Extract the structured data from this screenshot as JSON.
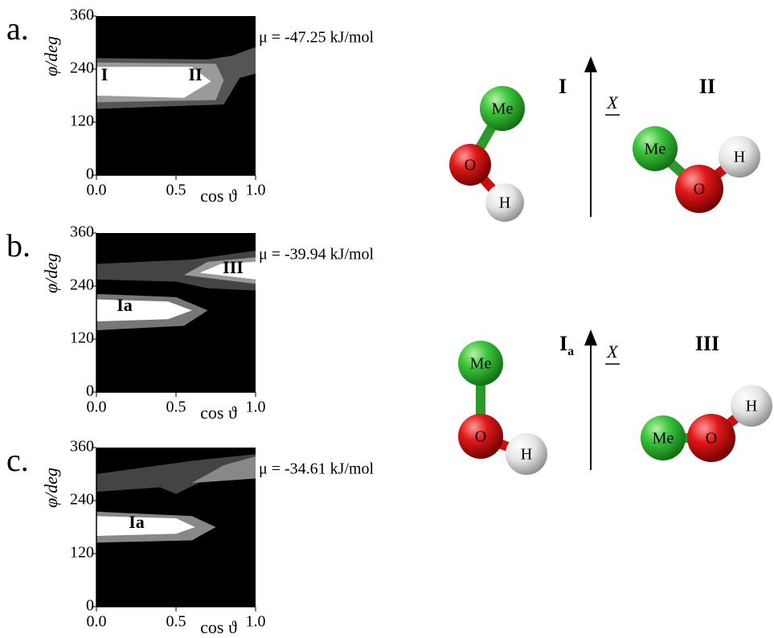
{
  "panels": [
    {
      "label": "a.",
      "y_label": "φ/deg",
      "x_label": "cos ϑ",
      "y_ticks": [
        "0",
        "120",
        "240",
        "360"
      ],
      "x_ticks": [
        "0.0",
        "0.5",
        "1.0"
      ],
      "energy": "μ = -47.25 kJ/mol",
      "regions": [
        "I",
        "II"
      ]
    },
    {
      "label": "b.",
      "y_label": "φ/deg",
      "x_label": "cos ϑ",
      "y_ticks": [
        "0",
        "120",
        "240",
        "360"
      ],
      "x_ticks": [
        "0.0",
        "0.5",
        "1.0"
      ],
      "energy": "μ = -39.94 kJ/mol",
      "regions": [
        "III",
        "Ia"
      ]
    },
    {
      "label": "c.",
      "y_label": "φ/deg",
      "x_label": "cos ϑ",
      "y_ticks": [
        "0",
        "120",
        "240",
        "360"
      ],
      "x_ticks": [
        "0.0",
        "0.5",
        "1.0"
      ],
      "energy": "μ = -34.61 kJ/mol",
      "regions": [
        "Ia"
      ]
    }
  ],
  "molecules": [
    {
      "label": "I",
      "atoms": [
        "Me",
        "O",
        "H"
      ]
    },
    {
      "label": "II",
      "atoms": [
        "Me",
        "O",
        "H"
      ]
    },
    {
      "label": "I",
      "subscript": "a",
      "atoms": [
        "Me",
        "O",
        "H"
      ]
    },
    {
      "label": "III",
      "atoms": [
        "Me",
        "O",
        "H"
      ]
    }
  ],
  "axis_label": "X"
}
